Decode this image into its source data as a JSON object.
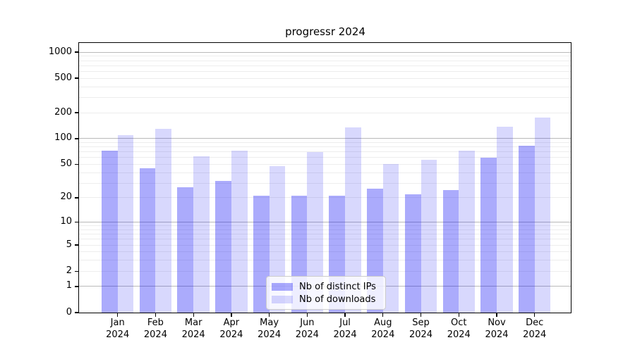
{
  "title": "progressr 2024",
  "chart_data": {
    "type": "bar",
    "title": "progressr 2024",
    "categories": [
      "Jan 2024",
      "Feb 2024",
      "Mar 2024",
      "Apr 2024",
      "May 2024",
      "Jun 2024",
      "Jul 2024",
      "Aug 2024",
      "Sep 2024",
      "Oct 2024",
      "Nov 2024",
      "Dec 2024"
    ],
    "series": [
      {
        "name": "Nb of distinct IPs",
        "color": "rgba(15,15,245,0.35)",
        "apparent_color": "#a9a9f6",
        "values": [
          72,
          45,
          27,
          32,
          21,
          21,
          21,
          26,
          22,
          25,
          60,
          83
        ]
      },
      {
        "name": "Nb of downloads",
        "color": "rgba(15,15,245,0.16)",
        "apparent_color": "#dadafb",
        "values": [
          110,
          130,
          62,
          73,
          48,
          70,
          135,
          50,
          57,
          72,
          138,
          176
        ]
      }
    ],
    "yscale": "log1p",
    "yticks": [
      0,
      1,
      2,
      5,
      10,
      20,
      50,
      100,
      200,
      500,
      1000
    ],
    "ylim": [
      0,
      1277
    ],
    "xlabel": "",
    "ylabel": "",
    "grid": "on",
    "legend_position": "bottom-center",
    "colors": {
      "axis": "#000000",
      "major_grid": "#b9b9b9",
      "minor_grid": "#ededed",
      "legend_border": "#cccccc",
      "legend_background": "rgba(255,255,255,0.8)",
      "text": "#000000",
      "background": "#ffffff"
    }
  }
}
